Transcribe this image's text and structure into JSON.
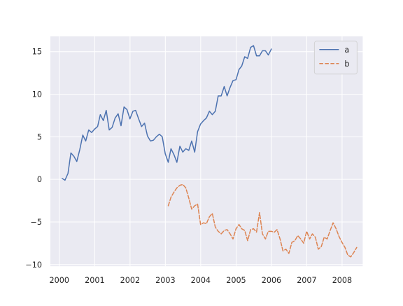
{
  "chart_data": {
    "type": "line",
    "title": "",
    "xlabel": "",
    "ylabel": "",
    "style": "seaborn-darkgrid",
    "background": "#eaeaf2",
    "grid": true,
    "legend_position": "top-right",
    "xlim": [
      "1999-10-01",
      "2008-08-01"
    ],
    "ylim": [
      -10.2,
      16.8
    ],
    "x_ticks": [
      {
        "value": "2000-01-01",
        "label": "2000"
      },
      {
        "value": "2001-01-01",
        "label": "2001"
      },
      {
        "value": "2002-01-01",
        "label": "2002"
      },
      {
        "value": "2003-01-01",
        "label": "2003"
      },
      {
        "value": "2004-01-01",
        "label": "2004"
      },
      {
        "value": "2005-01-01",
        "label": "2005"
      },
      {
        "value": "2006-01-01",
        "label": "2006"
      },
      {
        "value": "2007-01-01",
        "label": "2007"
      },
      {
        "value": "2008-01-01",
        "label": "2008"
      }
    ],
    "y_ticks": [
      {
        "value": -10,
        "label": "−10"
      },
      {
        "value": -5,
        "label": "−5"
      },
      {
        "value": 0,
        "label": "0"
      },
      {
        "value": 5,
        "label": "5"
      },
      {
        "value": 10,
        "label": "10"
      },
      {
        "value": 15,
        "label": "15"
      }
    ],
    "series": [
      {
        "name": "a",
        "color": "#4c72b0",
        "dash": "solid",
        "x": [
          "2000-01-31",
          "2000-02-29",
          "2000-03-31",
          "2000-04-30",
          "2000-05-31",
          "2000-06-30",
          "2000-07-31",
          "2000-08-31",
          "2000-09-30",
          "2000-10-31",
          "2000-11-30",
          "2000-12-31",
          "2001-01-31",
          "2001-02-28",
          "2001-03-31",
          "2001-04-30",
          "2001-05-31",
          "2001-06-30",
          "2001-07-31",
          "2001-08-31",
          "2001-09-30",
          "2001-10-31",
          "2001-11-30",
          "2001-12-31",
          "2002-01-31",
          "2002-02-28",
          "2002-03-31",
          "2002-04-30",
          "2002-05-31",
          "2002-06-30",
          "2002-07-31",
          "2002-08-31",
          "2002-09-30",
          "2002-10-31",
          "2002-11-30",
          "2002-12-31",
          "2003-01-31",
          "2003-02-28",
          "2003-03-31",
          "2003-04-30",
          "2003-05-31",
          "2003-06-30",
          "2003-07-31",
          "2003-08-31",
          "2003-09-30",
          "2003-10-31",
          "2003-11-30",
          "2003-12-31",
          "2004-01-31",
          "2004-02-29",
          "2004-03-31",
          "2004-04-30",
          "2004-05-31",
          "2004-06-30",
          "2004-07-31",
          "2004-08-31",
          "2004-09-30",
          "2004-10-31",
          "2004-11-30",
          "2004-12-31",
          "2005-01-31",
          "2005-02-28",
          "2005-03-31",
          "2005-04-30",
          "2005-05-31",
          "2005-06-30",
          "2005-07-31",
          "2005-08-31",
          "2005-09-30",
          "2005-10-31",
          "2005-11-30",
          "2005-12-31"
        ],
        "values": [
          0.1,
          -0.1,
          0.7,
          3.1,
          2.7,
          2.1,
          3.5,
          5.2,
          4.5,
          5.8,
          5.5,
          5.9,
          6.2,
          7.6,
          6.9,
          8.1,
          5.8,
          6.1,
          7.2,
          7.7,
          6.3,
          8.5,
          8.2,
          7.1,
          8.0,
          8.1,
          7.1,
          6.2,
          6.6,
          5.1,
          4.5,
          4.6,
          5.0,
          5.3,
          5.0,
          3.0,
          2.0,
          3.6,
          2.9,
          2.0,
          3.9,
          3.2,
          3.6,
          3.4,
          4.5,
          3.2,
          5.6,
          6.5,
          6.9,
          7.2,
          8.0,
          7.6,
          8.0,
          9.8,
          9.8,
          10.9,
          9.8,
          10.8,
          11.6,
          11.7,
          12.9,
          13.3,
          14.4,
          14.2,
          15.5,
          15.7,
          14.5,
          14.5,
          15.1,
          15.1,
          14.6,
          15.3
        ]
      },
      {
        "name": "b",
        "color": "#dd8452",
        "dash": "dashed",
        "x": [
          "2003-01-31",
          "2003-02-28",
          "2003-03-31",
          "2003-04-30",
          "2003-05-31",
          "2003-06-30",
          "2003-07-31",
          "2003-08-31",
          "2003-09-30",
          "2003-10-31",
          "2003-11-30",
          "2003-12-31",
          "2004-01-31",
          "2004-02-29",
          "2004-03-31",
          "2004-04-30",
          "2004-05-31",
          "2004-06-30",
          "2004-07-31",
          "2004-08-31",
          "2004-09-30",
          "2004-10-31",
          "2004-11-30",
          "2004-12-31",
          "2005-01-31",
          "2005-02-28",
          "2005-03-31",
          "2005-04-30",
          "2005-05-31",
          "2005-06-30",
          "2005-07-31",
          "2005-08-31",
          "2005-09-30",
          "2005-10-31",
          "2005-11-30",
          "2005-12-31",
          "2006-01-31",
          "2006-02-28",
          "2006-03-31",
          "2006-04-30",
          "2006-05-31",
          "2006-06-30",
          "2006-07-31",
          "2006-08-31",
          "2006-09-30",
          "2006-10-31",
          "2006-11-30",
          "2006-12-31",
          "2007-01-31",
          "2007-02-28",
          "2007-03-31",
          "2007-04-30",
          "2007-05-31",
          "2007-06-30",
          "2007-07-31",
          "2007-08-31",
          "2007-09-30",
          "2007-10-31",
          "2007-11-30",
          "2007-12-31",
          "2008-01-31",
          "2008-02-29",
          "2008-03-31",
          "2008-04-30",
          "2008-05-31"
        ],
        "values": [
          -3.1,
          -2.1,
          -1.5,
          -1.0,
          -0.7,
          -0.6,
          -1.0,
          -2.2,
          -3.5,
          -3.1,
          -2.9,
          -5.3,
          -5.1,
          -5.2,
          -4.4,
          -4.0,
          -5.6,
          -6.1,
          -6.4,
          -6.0,
          -5.9,
          -6.4,
          -7.0,
          -5.8,
          -5.3,
          -5.8,
          -6.0,
          -7.2,
          -5.9,
          -5.8,
          -6.2,
          -3.9,
          -6.4,
          -7.0,
          -6.1,
          -6.1,
          -6.2,
          -5.9,
          -7.0,
          -8.4,
          -8.2,
          -8.7,
          -7.4,
          -7.2,
          -6.6,
          -7.0,
          -7.5,
          -6.1,
          -7.0,
          -6.4,
          -6.8,
          -8.2,
          -7.9,
          -6.8,
          -7.0,
          -6.0,
          -5.1,
          -5.8,
          -6.7,
          -7.4,
          -8.0,
          -8.9,
          -9.1,
          -8.6,
          -8.0
        ]
      }
    ]
  }
}
